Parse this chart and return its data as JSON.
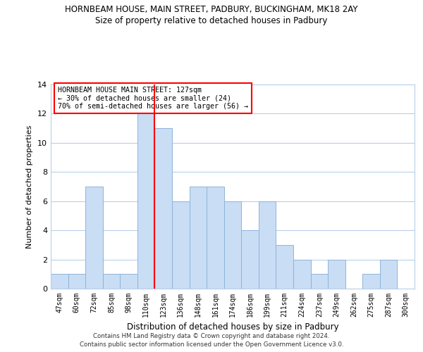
{
  "title1": "HORNBEAM HOUSE, MAIN STREET, PADBURY, BUCKINGHAM, MK18 2AY",
  "title2": "Size of property relative to detached houses in Padbury",
  "xlabel": "Distribution of detached houses by size in Padbury",
  "ylabel": "Number of detached properties",
  "bar_labels": [
    "47sqm",
    "60sqm",
    "72sqm",
    "85sqm",
    "98sqm",
    "110sqm",
    "123sqm",
    "136sqm",
    "148sqm",
    "161sqm",
    "174sqm",
    "186sqm",
    "199sqm",
    "211sqm",
    "224sqm",
    "237sqm",
    "249sqm",
    "262sqm",
    "275sqm",
    "287sqm",
    "300sqm"
  ],
  "bar_heights": [
    1,
    1,
    7,
    1,
    1,
    12,
    11,
    6,
    7,
    7,
    6,
    4,
    6,
    3,
    2,
    1,
    2,
    0,
    1,
    2,
    0
  ],
  "bar_color": "#c9ddf5",
  "bar_edge_color": "#8fb4d9",
  "redline_index": 6,
  "annotation_title": "HORNBEAM HOUSE MAIN STREET: 127sqm",
  "annotation_line1": "← 30% of detached houses are smaller (24)",
  "annotation_line2": "70% of semi-detached houses are larger (56) →",
  "ylim": [
    0,
    14
  ],
  "yticks": [
    0,
    2,
    4,
    6,
    8,
    10,
    12,
    14
  ],
  "grid_color": "#b8cfe8",
  "footer1": "Contains HM Land Registry data © Crown copyright and database right 2024.",
  "footer2": "Contains public sector information licensed under the Open Government Licence v3.0."
}
